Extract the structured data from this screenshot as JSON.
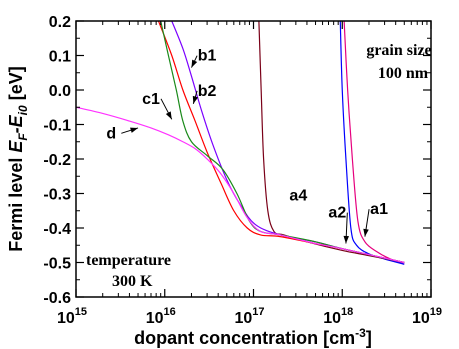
{
  "chart_data": {
    "type": "line",
    "xlabel": "dopant concentration",
    "xunit_prefix": "[cm",
    "xunit_sup": "-3",
    "xunit_suffix": "]",
    "ylabel_prefix": "Fermi level",
    "ylabel_main": "E",
    "ylabel_sub1": "F",
    "ylabel_minus": "-E",
    "ylabel_sub2": "i0",
    "ylabel_unit": " [eV]",
    "xscale": "log",
    "xlim": [
      1000000000000000.0,
      1e+19
    ],
    "ylim": [
      -0.6,
      0.2
    ],
    "x_ticks": [
      {
        "value": 1000000000000000.0,
        "base": "10",
        "exp": "15"
      },
      {
        "value": 1e+16,
        "base": "10",
        "exp": "16"
      },
      {
        "value": 1e+17,
        "base": "10",
        "exp": "17"
      },
      {
        "value": 1e+18,
        "base": "10",
        "exp": "18"
      },
      {
        "value": 1e+19,
        "base": "10",
        "exp": "19"
      }
    ],
    "y_ticks": [
      {
        "value": 0.2,
        "label": "0.2"
      },
      {
        "value": 0.1,
        "label": "0.1"
      },
      {
        "value": 0.0,
        "label": "0.0"
      },
      {
        "value": -0.1,
        "label": "-0.1"
      },
      {
        "value": -0.2,
        "label": "-0.2"
      },
      {
        "value": -0.3,
        "label": "-0.3"
      },
      {
        "value": -0.4,
        "label": "-0.4"
      },
      {
        "value": -0.5,
        "label": "-0.5"
      },
      {
        "value": -0.6,
        "label": "-0.6"
      }
    ],
    "annotations": {
      "grain_line1": "grain size",
      "grain_line2": "100 nm",
      "temp_line1": "temperature",
      "temp_line2": "300 K"
    },
    "series": [
      {
        "name": "a1",
        "color": "#e6007e",
        "x": [
          1.05e+18,
          1.15e+18,
          1.3e+18,
          1.5e+18,
          1.8e+18,
          2.5e+18,
          3.5e+18,
          5e+18
        ],
        "y": [
          0.2,
          0.0,
          -0.2,
          -0.38,
          -0.44,
          -0.47,
          -0.49,
          -0.505
        ]
      },
      {
        "name": "a2",
        "color": "#0000ff",
        "x": [
          9.5e+17,
          1e+18,
          1.1e+18,
          1.25e+18,
          1.45e+18,
          2e+18,
          3e+18,
          5e+18
        ],
        "y": [
          0.2,
          0.0,
          -0.2,
          -0.4,
          -0.45,
          -0.475,
          -0.49,
          -0.505
        ]
      },
      {
        "name": "a4",
        "color": "#7a0018",
        "x": [
          1.15e+17,
          1.22e+17,
          1.3e+17,
          1.45e+17,
          1.7e+17,
          2.2e+17,
          4e+17,
          1e+18,
          2e+18,
          5e+18
        ],
        "y": [
          0.2,
          0.0,
          -0.2,
          -0.35,
          -0.41,
          -0.42,
          -0.44,
          -0.465,
          -0.48,
          -0.5
        ]
      },
      {
        "name": "b1",
        "color": "#7b00ff",
        "x": [
          1.2e+16,
          1.6e+16,
          2e+16,
          2.6e+16,
          3.5e+16,
          5e+16,
          7e+16,
          1.05e+17,
          2e+17,
          5e+17,
          1e+18,
          5e+18
        ],
        "y": [
          0.2,
          0.12,
          0.04,
          -0.06,
          -0.16,
          -0.26,
          -0.33,
          -0.39,
          -0.42,
          -0.44,
          -0.46,
          -0.5
        ]
      },
      {
        "name": "b2",
        "color": "#ff0000",
        "x": [
          8500000000000000.0,
          1.2e+16,
          1.6e+16,
          2.2e+16,
          3e+16,
          4.3e+16,
          6e+16,
          8.5e+16,
          1.2e+17,
          2e+17,
          5e+17,
          1e+18,
          5e+18
        ],
        "y": [
          0.2,
          0.1,
          0.0,
          -0.09,
          -0.18,
          -0.27,
          -0.35,
          -0.4,
          -0.42,
          -0.425,
          -0.445,
          -0.46,
          -0.5
        ]
      },
      {
        "name": "c1",
        "color": "#1a8a1a",
        "x": [
          9000000000000000.0,
          1.1e+16,
          1.35e+16,
          1.6e+16,
          2e+16,
          3e+16,
          4.5e+16,
          6.5e+16,
          9e+16,
          1.2e+17,
          2e+17,
          5e+17,
          1e+18,
          5e+18
        ],
        "y": [
          0.2,
          0.1,
          0.0,
          -0.09,
          -0.15,
          -0.19,
          -0.23,
          -0.3,
          -0.38,
          -0.41,
          -0.42,
          -0.44,
          -0.46,
          -0.5
        ]
      },
      {
        "name": "d",
        "color": "#ff33ff",
        "x": [
          1000000000000000.0,
          2000000000000000.0,
          4000000000000000.0,
          7000000000000000.0,
          1.1e+16,
          1.6e+16,
          2.2e+16,
          3e+16,
          4.2e+16,
          6e+16,
          8.5e+16,
          1.2e+17,
          2e+17,
          5e+17,
          1e+18,
          5e+18
        ],
        "y": [
          -0.05,
          -0.068,
          -0.09,
          -0.11,
          -0.13,
          -0.15,
          -0.17,
          -0.2,
          -0.24,
          -0.3,
          -0.37,
          -0.41,
          -0.42,
          -0.445,
          -0.46,
          -0.5
        ]
      }
    ],
    "curve_labels": [
      {
        "text": "b1",
        "x": 3e+16,
        "y": 0.085,
        "tx": 2e+16,
        "ty": 0.065
      },
      {
        "text": "b2",
        "x": 3e+16,
        "y": -0.017,
        "tx": 2.1e+16,
        "ty": -0.04
      },
      {
        "text": "c1",
        "x": 7000000000000000.0,
        "y": -0.04,
        "tx": 1.2e+16,
        "ty": -0.085
      },
      {
        "text": "d",
        "x": 2500000000000000.0,
        "y": -0.14,
        "tx": 5000000000000000.0,
        "ty": -0.11
      },
      {
        "text": "a4",
        "x": 3.2e+17,
        "y": -0.32,
        "tx": null,
        "ty": null
      },
      {
        "text": "a2",
        "x": 8.8e+17,
        "y": -0.37,
        "tx": 1.1e+18,
        "ty": -0.445
      },
      {
        "text": "a1",
        "x": 2.6e+18,
        "y": -0.36,
        "tx": 1.8e+18,
        "ty": -0.425
      }
    ]
  }
}
